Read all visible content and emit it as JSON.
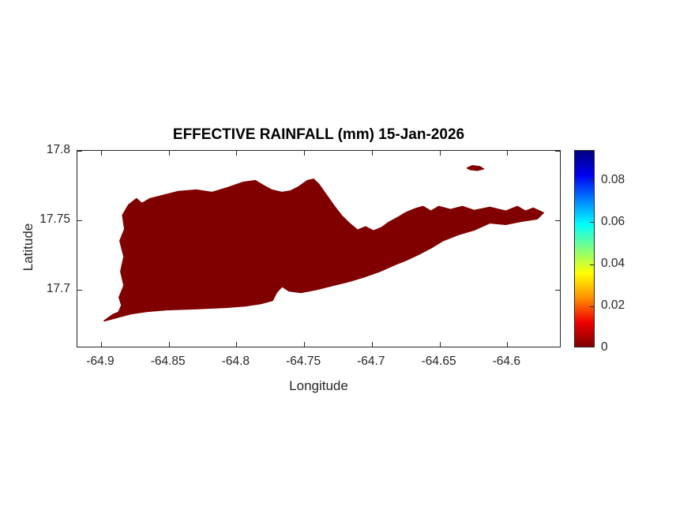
{
  "chart_data": {
    "type": "heatmap",
    "subtype": "filled-region-map",
    "title": "EFFECTIVE RAINFALL (mm) 15-Jan-2026",
    "xlabel": "Longitude",
    "ylabel": "Latitude",
    "xlim": [
      -64.9175,
      -64.5599
    ],
    "ylim": [
      17.658,
      17.8
    ],
    "x_ticks": [
      -64.9,
      -64.85,
      -64.8,
      -64.75,
      -64.7,
      -64.65,
      -64.6
    ],
    "x_tick_labels": [
      "-64.9",
      "-64.85",
      "-64.8",
      "-64.75",
      "-64.7",
      "-64.65",
      "-64.6"
    ],
    "y_ticks": [
      17.7,
      17.75,
      17.8
    ],
    "y_tick_labels": [
      "17.7",
      "17.75",
      "17.8"
    ],
    "grid": false,
    "region_value": 0,
    "region_fill": "#800000",
    "axis_color": "#262626",
    "colorbar": {
      "position": "right",
      "min": 0,
      "max": 0.0943,
      "ticks": [
        0,
        0.02,
        0.04,
        0.06,
        0.08
      ],
      "tick_labels": [
        "0",
        "0.02",
        "0.04",
        "0.06",
        "0.08"
      ],
      "colormap": "jet-reversed",
      "gradient_top_to_bottom": [
        "#00007f",
        "#0000f0",
        "#0080ff",
        "#00ffff",
        "#80ff80",
        "#ffff00",
        "#ff9000",
        "#f00000",
        "#800000"
      ]
    },
    "regions": [
      {
        "name": "main-island",
        "points": [
          [
            -64.8977,
            17.6767
          ],
          [
            -64.8912,
            17.6813
          ],
          [
            -64.887,
            17.683
          ],
          [
            -64.8848,
            17.688
          ],
          [
            -64.8866,
            17.6938
          ],
          [
            -64.883,
            17.7023
          ],
          [
            -64.8854,
            17.7125
          ],
          [
            -64.883,
            17.7233
          ],
          [
            -64.886,
            17.7347
          ],
          [
            -64.8825,
            17.7432
          ],
          [
            -64.884,
            17.7534
          ],
          [
            -64.8796,
            17.7608
          ],
          [
            -64.8737,
            17.7653
          ],
          [
            -64.8697,
            17.7619
          ],
          [
            -64.8638,
            17.7653
          ],
          [
            -64.8545,
            17.7676
          ],
          [
            -64.8428,
            17.7705
          ],
          [
            -64.8294,
            17.7716
          ],
          [
            -64.8177,
            17.7699
          ],
          [
            -64.8061,
            17.7733
          ],
          [
            -64.7944,
            17.7773
          ],
          [
            -64.7857,
            17.7784
          ],
          [
            -64.7798,
            17.775
          ],
          [
            -64.7734,
            17.7716
          ],
          [
            -64.7658,
            17.7699
          ],
          [
            -64.7594,
            17.771
          ],
          [
            -64.7536,
            17.7739
          ],
          [
            -64.7471,
            17.7784
          ],
          [
            -64.7425,
            17.7795
          ],
          [
            -64.7384,
            17.7756
          ],
          [
            -64.7331,
            17.7682
          ],
          [
            -64.7273,
            17.7602
          ],
          [
            -64.7215,
            17.7528
          ],
          [
            -64.7156,
            17.7472
          ],
          [
            -64.7098,
            17.7426
          ],
          [
            -64.704,
            17.7449
          ],
          [
            -64.6981,
            17.742
          ],
          [
            -64.6923,
            17.7443
          ],
          [
            -64.6865,
            17.7483
          ],
          [
            -64.68,
            17.7517
          ],
          [
            -64.6742,
            17.7551
          ],
          [
            -64.6672,
            17.758
          ],
          [
            -64.6614,
            17.7597
          ],
          [
            -64.6555,
            17.7563
          ],
          [
            -64.6497,
            17.7597
          ],
          [
            -64.641,
            17.7574
          ],
          [
            -64.6322,
            17.7597
          ],
          [
            -64.6235,
            17.7568
          ],
          [
            -64.6118,
            17.7591
          ],
          [
            -64.6001,
            17.7563
          ],
          [
            -64.5914,
            17.7597
          ],
          [
            -64.5855,
            17.7563
          ],
          [
            -64.5797,
            17.7585
          ],
          [
            -64.5721,
            17.7551
          ],
          [
            -64.5768,
            17.7506
          ],
          [
            -64.5884,
            17.7489
          ],
          [
            -64.6001,
            17.7466
          ],
          [
            -64.6118,
            17.7477
          ],
          [
            -64.6235,
            17.7426
          ],
          [
            -64.6352,
            17.7392
          ],
          [
            -64.6468,
            17.7347
          ],
          [
            -64.6555,
            17.7295
          ],
          [
            -64.6643,
            17.725
          ],
          [
            -64.673,
            17.721
          ],
          [
            -64.6818,
            17.7176
          ],
          [
            -64.6935,
            17.7125
          ],
          [
            -64.7051,
            17.7085
          ],
          [
            -64.7168,
            17.7051
          ],
          [
            -64.7285,
            17.7023
          ],
          [
            -64.7402,
            17.6994
          ],
          [
            -64.7518,
            17.6972
          ],
          [
            -64.7606,
            17.6983
          ],
          [
            -64.7658,
            17.7017
          ],
          [
            -64.7699,
            17.6972
          ],
          [
            -64.7728,
            17.6915
          ],
          [
            -64.7816,
            17.6892
          ],
          [
            -64.7932,
            17.6875
          ],
          [
            -64.8078,
            17.6864
          ],
          [
            -64.8224,
            17.6858
          ],
          [
            -64.837,
            17.6852
          ],
          [
            -64.8516,
            17.6847
          ],
          [
            -64.8662,
            17.6835
          ],
          [
            -64.8778,
            17.6818
          ],
          [
            -64.8866,
            17.6795
          ],
          [
            -64.893,
            17.6778
          ]
        ]
      },
      {
        "name": "small-islet",
        "points": [
          [
            -64.6287,
            17.7875
          ],
          [
            -64.6247,
            17.7892
          ],
          [
            -64.6194,
            17.7886
          ],
          [
            -64.6165,
            17.7869
          ],
          [
            -64.6211,
            17.7858
          ],
          [
            -64.6264,
            17.7864
          ]
        ]
      }
    ]
  }
}
